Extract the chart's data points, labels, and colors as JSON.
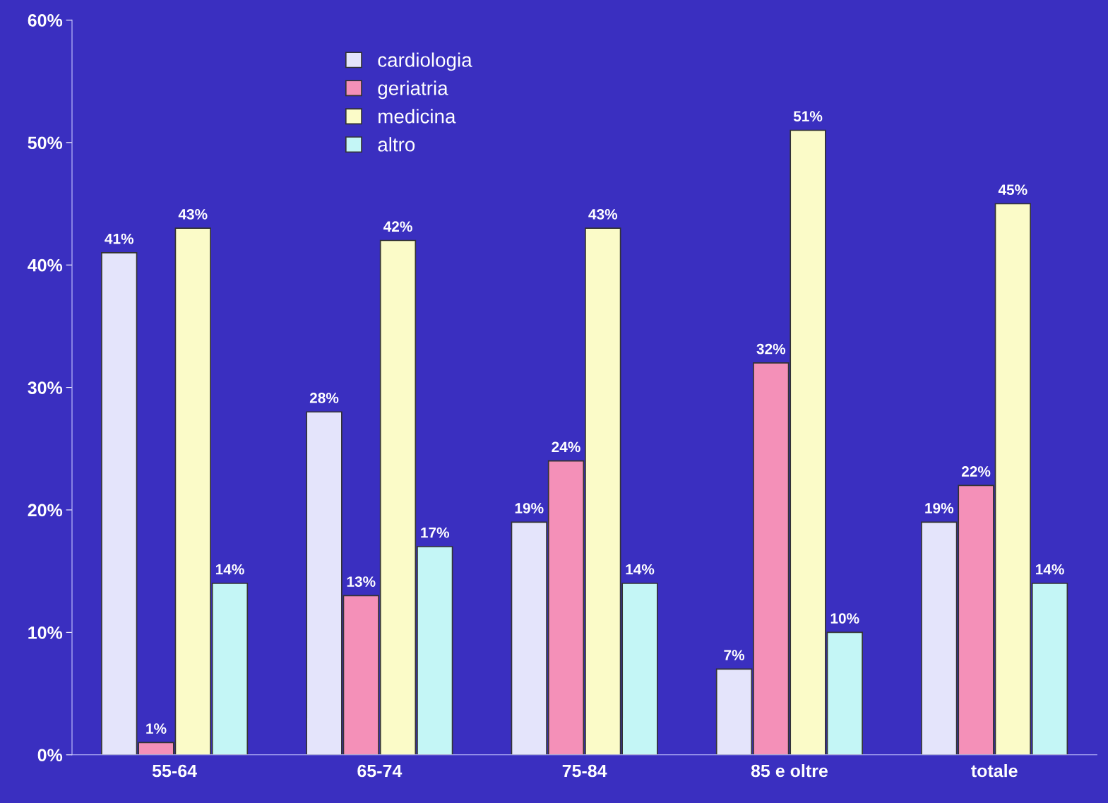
{
  "chart_data": {
    "type": "bar",
    "categories": [
      "55-64",
      "65-74",
      "75-84",
      "85 e oltre",
      "totale"
    ],
    "series": [
      {
        "name": "cardiologia",
        "color": "#e4e4fb",
        "values": [
          41,
          28,
          19,
          7,
          19
        ],
        "value_labels": [
          "41%",
          "28%",
          "19%",
          "7%",
          "19%"
        ]
      },
      {
        "name": "geriatria",
        "color": "#f490b8",
        "values": [
          1,
          13,
          24,
          32,
          22
        ],
        "value_labels": [
          "1%",
          "13%",
          "24%",
          "32%",
          "22%"
        ]
      },
      {
        "name": "medicina",
        "color": "#fbfbc8",
        "values": [
          43,
          42,
          43,
          51,
          45
        ],
        "value_labels": [
          "43%",
          "42%",
          "43%",
          "51%",
          "45%"
        ]
      },
      {
        "name": "altro",
        "color": "#c4f6f6",
        "values": [
          14,
          17,
          14,
          10,
          14
        ],
        "value_labels": [
          "14%",
          "17%",
          "14%",
          "10%",
          "14%"
        ]
      }
    ],
    "ylim": [
      0,
      60
    ],
    "yticks": [
      {
        "value": 0,
        "label": "0%"
      },
      {
        "value": 10,
        "label": "10%"
      },
      {
        "value": 20,
        "label": "20%"
      },
      {
        "value": 30,
        "label": "30%"
      },
      {
        "value": 40,
        "label": "40%"
      },
      {
        "value": 50,
        "label": "50%"
      },
      {
        "value": 60,
        "label": "60%"
      }
    ],
    "legend": "top left",
    "grid": false
  }
}
